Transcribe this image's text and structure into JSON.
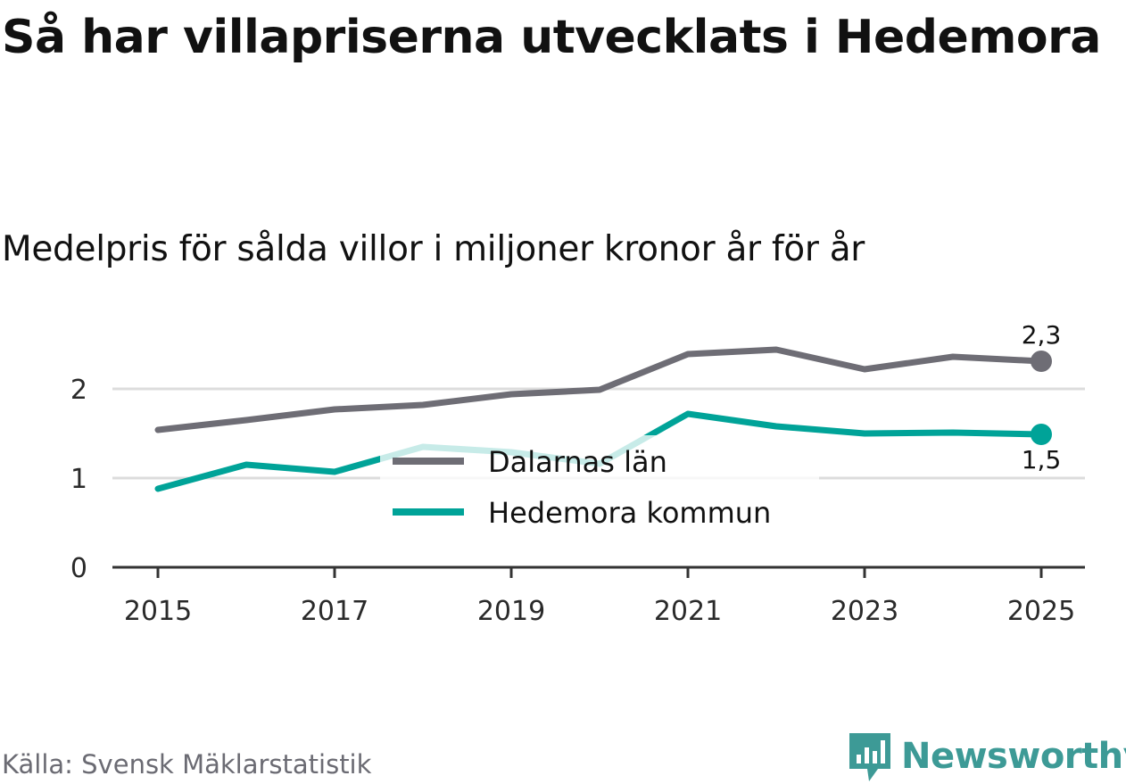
{
  "chart_data": {
    "type": "line",
    "title": "Så har villapriserna utvecklats i Hedemora",
    "subtitle": "Medelpris för sålda villor i miljoner kronor år för år",
    "x": [
      2015,
      2016,
      2017,
      2018,
      2019,
      2020,
      2021,
      2022,
      2023,
      2024,
      2025
    ],
    "x_tick_labels": [
      "2015",
      "2017",
      "2019",
      "2021",
      "2023",
      "2025"
    ],
    "y_ticks": [
      0,
      1,
      2
    ],
    "y_tick_labels": [
      "0",
      "1",
      "2"
    ],
    "ylim": [
      0,
      2.6
    ],
    "grid": true,
    "legend_position": "center",
    "series": [
      {
        "name": "Dalarnas län",
        "color": "#6e6d75",
        "values": [
          1.54,
          1.65,
          1.77,
          1.82,
          1.94,
          1.99,
          2.39,
          2.44,
          2.22,
          2.36,
          2.31
        ],
        "end_label": "2,3"
      },
      {
        "name": "Hedemora kommun",
        "color": "#00a398",
        "values": [
          0.88,
          1.15,
          1.07,
          1.35,
          1.29,
          1.16,
          1.72,
          1.58,
          1.5,
          1.51,
          1.49
        ],
        "end_label": "1,5"
      }
    ]
  },
  "source": "Källa: Svensk Mäklarstatistik",
  "logo": {
    "text": "Newsworthy",
    "icon": "bar-chart-icon"
  }
}
